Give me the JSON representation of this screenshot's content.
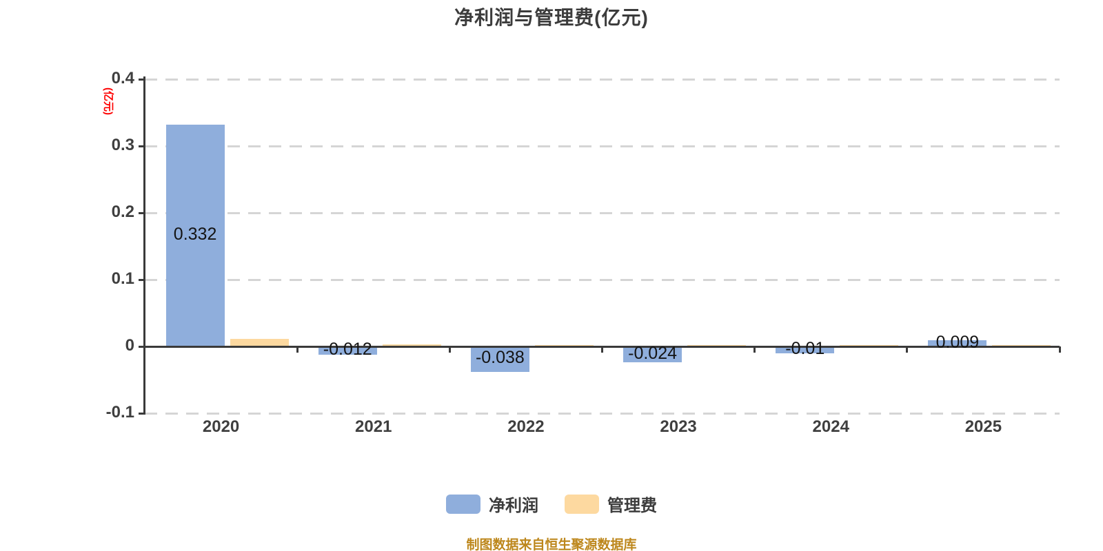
{
  "source_note": "制图数据来自恒生聚源数据库",
  "chart_data": {
    "type": "bar",
    "title": "净利润与管理费(亿元)",
    "ylabel": "(亿元)",
    "xlabel": "",
    "categories": [
      "2020",
      "2021",
      "2022",
      "2023",
      "2024",
      "2025"
    ],
    "series": [
      {
        "key": "net-profit",
        "name": "净利润",
        "color": "#8FAEDC",
        "values": [
          0.332,
          -0.012,
          -0.038,
          -0.024,
          -0.01,
          0.009
        ],
        "data_labels": [
          "0.332",
          "-0.012",
          "-0.038",
          "-0.024",
          "-0.01",
          "0.009"
        ]
      },
      {
        "key": "mgmt-fee",
        "name": "管理费",
        "color": "#FDD9A0",
        "values": [
          0.011,
          0.003,
          0.002,
          0.002,
          0.001,
          0.001
        ],
        "data_labels": null
      }
    ],
    "ylim": [
      -0.1,
      0.4
    ],
    "yticks": [
      0.4,
      0.3,
      0.2,
      0.1,
      0,
      -0.1
    ],
    "ytick_labels": [
      "0.4",
      "0.3",
      "0.2",
      "0.1",
      "0",
      "-0.1"
    ],
    "grid": {
      "horizontal": true,
      "style": "dashed",
      "color": "#d5d5d5"
    },
    "legend_position": "bottom",
    "colors": {
      "axis": "#3a3a3a",
      "bar_label": "#141414",
      "unit_label": "#fe0000",
      "source_note": "#bd871c"
    }
  }
}
